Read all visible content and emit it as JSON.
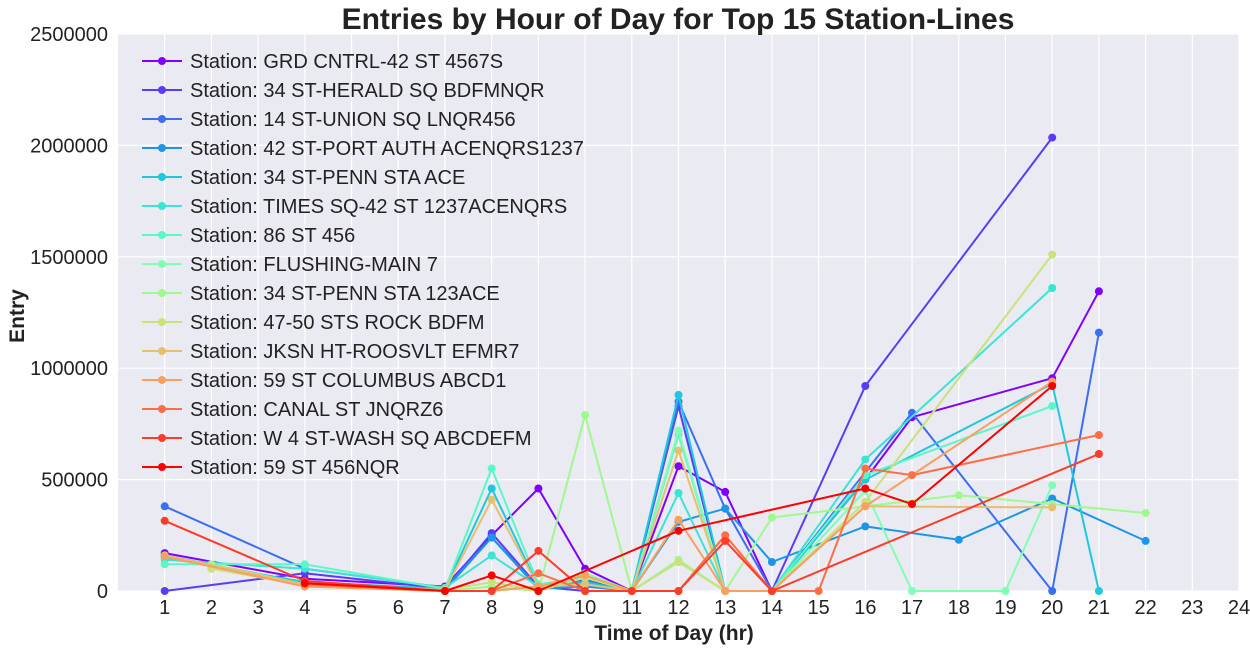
{
  "chart_data": {
    "type": "line",
    "title": "Entries by Hour of Day for Top 15 Station-Lines",
    "xlabel": "Time of Day (hr)",
    "ylabel": "Entry",
    "xlim": [
      0,
      24
    ],
    "ylim": [
      0,
      2500000
    ],
    "xticks": [
      "1",
      "2",
      "3",
      "4",
      "5",
      "6",
      "7",
      "8",
      "9",
      "10",
      "11",
      "12",
      "13",
      "14",
      "15",
      "16",
      "17",
      "18",
      "19",
      "20",
      "21",
      "22",
      "23",
      "24"
    ],
    "yticks": [
      "0",
      "500000",
      "1000000",
      "1500000",
      "2000000",
      "2500000"
    ],
    "grid": true,
    "legend_position": "top-left",
    "series": [
      {
        "name": "Station: GRD CNTRL-42 ST 4567S",
        "color": "#8000ff",
        "points": [
          [
            1,
            170000
          ],
          [
            4,
            55000
          ],
          [
            7,
            20000
          ],
          [
            8,
            250000
          ],
          [
            9,
            460000
          ],
          [
            10,
            100000
          ],
          [
            11,
            0
          ],
          [
            12,
            560000
          ],
          [
            13,
            445000
          ],
          [
            14,
            0
          ],
          [
            16,
            500000
          ],
          [
            17,
            780000
          ],
          [
            20,
            955000
          ],
          [
            21,
            1345000
          ]
        ]
      },
      {
        "name": "Station: 34 ST-HERALD SQ BDFMNQR",
        "color": "#5a3cf8",
        "points": [
          [
            1,
            0
          ],
          [
            4,
            80000
          ],
          [
            7,
            10000
          ],
          [
            8,
            260000
          ],
          [
            9,
            20000
          ],
          [
            10,
            0
          ],
          [
            11,
            0
          ],
          [
            12,
            830000
          ],
          [
            13,
            0
          ],
          [
            14,
            0
          ],
          [
            16,
            920000
          ],
          [
            20,
            2035000
          ]
        ]
      },
      {
        "name": "Station: 14 ST-UNION SQ LNQR456",
        "color": "#3c6ef1",
        "points": [
          [
            1,
            380000
          ],
          [
            4,
            100000
          ],
          [
            7,
            15000
          ],
          [
            8,
            240000
          ],
          [
            9,
            20000
          ],
          [
            10,
            50000
          ],
          [
            11,
            0
          ],
          [
            12,
            850000
          ],
          [
            13,
            370000
          ],
          [
            14,
            0
          ],
          [
            17,
            800000
          ],
          [
            20,
            0
          ],
          [
            21,
            1160000
          ]
        ]
      },
      {
        "name": "Station: 42 ST-PORT AUTH ACENQRS1237",
        "color": "#1e96e6",
        "points": [
          [
            1,
            160000
          ],
          [
            4,
            35000
          ],
          [
            7,
            5000
          ],
          [
            8,
            240000
          ],
          [
            9,
            10000
          ],
          [
            10,
            20000
          ],
          [
            11,
            0
          ],
          [
            12,
            310000
          ],
          [
            13,
            370000
          ],
          [
            14,
            130000
          ],
          [
            16,
            290000
          ],
          [
            18,
            230000
          ],
          [
            20,
            415000
          ],
          [
            22,
            225000
          ]
        ]
      },
      {
        "name": "Station: 34 ST-PENN STA ACE",
        "color": "#1ec8e0",
        "points": [
          [
            1,
            150000
          ],
          [
            4,
            40000
          ],
          [
            7,
            10000
          ],
          [
            8,
            460000
          ],
          [
            9,
            20000
          ],
          [
            10,
            40000
          ],
          [
            11,
            0
          ],
          [
            12,
            880000
          ],
          [
            13,
            0
          ],
          [
            14,
            0
          ],
          [
            16,
            500000
          ],
          [
            20,
            930000
          ],
          [
            21,
            0
          ]
        ]
      },
      {
        "name": "Station: TIMES SQ-42 ST 1237ACENQRS",
        "color": "#3ce4d4",
        "points": [
          [
            1,
            140000
          ],
          [
            4,
            100000
          ],
          [
            7,
            15000
          ],
          [
            8,
            160000
          ],
          [
            9,
            20000
          ],
          [
            10,
            30000
          ],
          [
            11,
            0
          ],
          [
            12,
            440000
          ],
          [
            13,
            0
          ],
          [
            14,
            0
          ],
          [
            16,
            590000
          ],
          [
            20,
            1360000
          ]
        ]
      },
      {
        "name": "Station: 86 ST 456",
        "color": "#5af8c8",
        "points": [
          [
            1,
            120000
          ],
          [
            4,
            120000
          ],
          [
            7,
            10000
          ],
          [
            8,
            550000
          ],
          [
            9,
            30000
          ],
          [
            10,
            60000
          ],
          [
            11,
            0
          ],
          [
            12,
            700000
          ],
          [
            13,
            0
          ],
          [
            14,
            0
          ],
          [
            16,
            520000
          ],
          [
            20,
            830000
          ]
        ]
      },
      {
        "name": "Station: FLUSHING-MAIN 7",
        "color": "#80ffb4",
        "points": [
          [
            2,
            110000
          ],
          [
            4,
            20000
          ],
          [
            7,
            0
          ],
          [
            8,
            20000
          ],
          [
            9,
            0
          ],
          [
            10,
            80000
          ],
          [
            11,
            0
          ],
          [
            12,
            720000
          ],
          [
            13,
            0
          ],
          [
            14,
            0
          ],
          [
            16,
            450000
          ],
          [
            17,
            0
          ],
          [
            19,
            0
          ],
          [
            20,
            475000
          ]
        ]
      },
      {
        "name": "Station: 34 ST-PENN STA 123ACE",
        "color": "#a0f890",
        "points": [
          [
            2,
            120000
          ],
          [
            4,
            30000
          ],
          [
            7,
            0
          ],
          [
            8,
            20000
          ],
          [
            9,
            0
          ],
          [
            10,
            790000
          ],
          [
            11,
            0
          ],
          [
            12,
            140000
          ],
          [
            13,
            0
          ],
          [
            14,
            330000
          ],
          [
            16,
            380000
          ],
          [
            18,
            430000
          ],
          [
            20,
            390000
          ],
          [
            22,
            350000
          ]
        ]
      },
      {
        "name": "Station: 47-50 STS ROCK BDFM",
        "color": "#c8e27c",
        "points": [
          [
            2,
            100000
          ],
          [
            4,
            25000
          ],
          [
            7,
            5000
          ],
          [
            8,
            40000
          ],
          [
            9,
            0
          ],
          [
            10,
            60000
          ],
          [
            11,
            0
          ],
          [
            12,
            130000
          ],
          [
            13,
            0
          ],
          [
            14,
            0
          ],
          [
            16,
            400000
          ],
          [
            20,
            1510000
          ]
        ]
      },
      {
        "name": "Station: JKSN HT-ROOSVLT EFMR7",
        "color": "#e6c06e",
        "points": [
          [
            1,
            160000
          ],
          [
            4,
            30000
          ],
          [
            7,
            5000
          ],
          [
            8,
            410000
          ],
          [
            9,
            20000
          ],
          [
            10,
            30000
          ],
          [
            11,
            0
          ],
          [
            12,
            630000
          ],
          [
            13,
            0
          ],
          [
            14,
            0
          ],
          [
            16,
            380000
          ],
          [
            20,
            375000
          ]
        ]
      },
      {
        "name": "Station: 59 ST COLUMBUS ABCD1",
        "color": "#f8a060",
        "points": [
          [
            1,
            155000
          ],
          [
            4,
            20000
          ],
          [
            7,
            0
          ],
          [
            8,
            0
          ],
          [
            9,
            20000
          ],
          [
            10,
            70000
          ],
          [
            11,
            0
          ],
          [
            12,
            320000
          ],
          [
            13,
            0
          ],
          [
            14,
            0
          ],
          [
            16,
            380000
          ],
          [
            20,
            940000
          ]
        ]
      },
      {
        "name": "Station: CANAL ST JNQRZ6",
        "color": "#ff6e46",
        "points": [
          [
            4,
            30000
          ],
          [
            7,
            0
          ],
          [
            8,
            0
          ],
          [
            9,
            80000
          ],
          [
            10,
            0
          ],
          [
            11,
            0
          ],
          [
            12,
            0
          ],
          [
            13,
            250000
          ],
          [
            14,
            0
          ],
          [
            15,
            0
          ],
          [
            16,
            550000
          ],
          [
            17,
            520000
          ],
          [
            21,
            700000
          ]
        ]
      },
      {
        "name": "Station: W 4 ST-WASH SQ ABCDEFM",
        "color": "#ff3c28",
        "points": [
          [
            1,
            315000
          ],
          [
            4,
            45000
          ],
          [
            7,
            0
          ],
          [
            8,
            0
          ],
          [
            9,
            180000
          ],
          [
            10,
            0
          ],
          [
            11,
            0
          ],
          [
            12,
            0
          ],
          [
            13,
            225000
          ],
          [
            14,
            0
          ],
          [
            21,
            615000
          ]
        ]
      },
      {
        "name": "Station: 59 ST 456NQR",
        "color": "#ff0000",
        "points": [
          [
            4,
            35000
          ],
          [
            7,
            0
          ],
          [
            8,
            70000
          ],
          [
            9,
            0
          ],
          [
            12,
            270000
          ],
          [
            16,
            460000
          ],
          [
            17,
            390000
          ],
          [
            20,
            920000
          ]
        ]
      }
    ]
  }
}
